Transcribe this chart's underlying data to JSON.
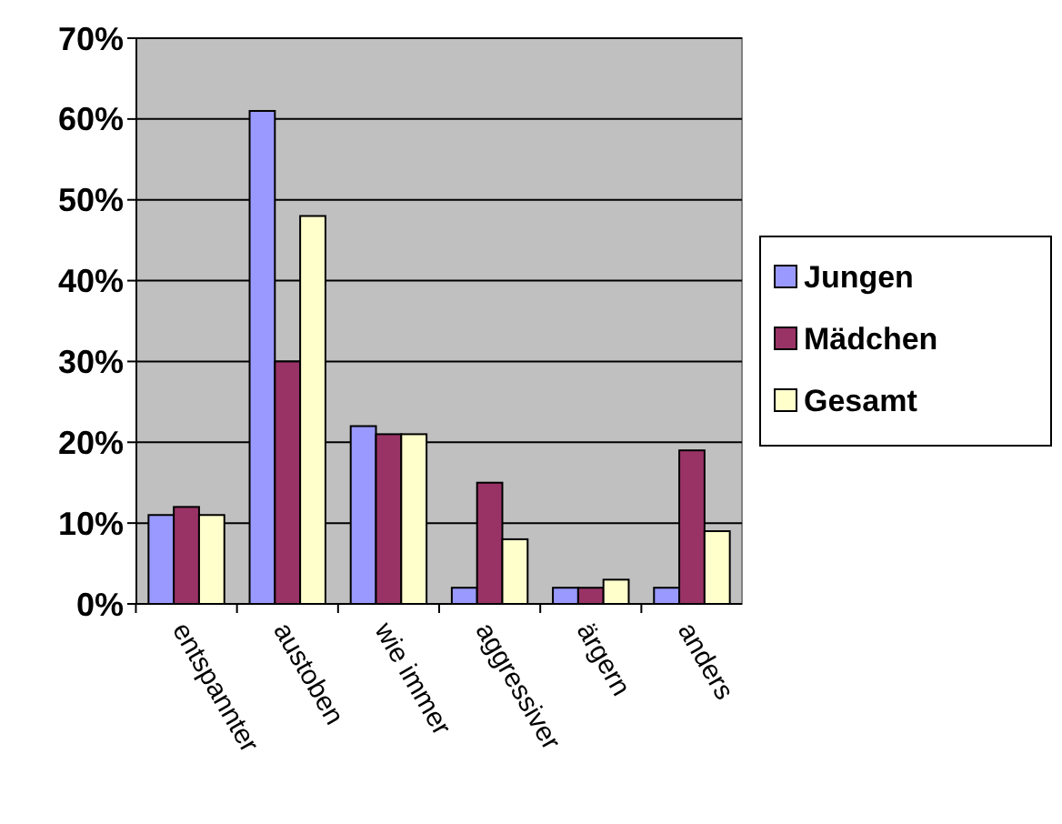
{
  "chart_data": {
    "type": "bar",
    "categories": [
      "entspannter",
      "austoben",
      "wie immer",
      "aggressiver",
      "ärgern",
      "anders"
    ],
    "series": [
      {
        "name": "Jungen",
        "color": "#9999ff",
        "values": [
          11,
          61,
          22,
          2,
          2,
          2
        ]
      },
      {
        "name": "Mädchen",
        "color": "#993366",
        "values": [
          12,
          30,
          21,
          15,
          2,
          19
        ]
      },
      {
        "name": "Gesamt",
        "color": "#ffffcc",
        "values": [
          11,
          48,
          21,
          8,
          3,
          9
        ]
      }
    ],
    "ylim": [
      0,
      70
    ],
    "yticks": [
      {
        "value": 0,
        "label": "0%"
      },
      {
        "value": 10,
        "label": "10%"
      },
      {
        "value": 20,
        "label": "20%"
      },
      {
        "value": 30,
        "label": "30%"
      },
      {
        "value": 40,
        "label": "40%"
      },
      {
        "value": 50,
        "label": "50%"
      },
      {
        "value": 60,
        "label": "60%"
      },
      {
        "value": 70,
        "label": "70%"
      }
    ],
    "grid": "y",
    "legend": "right"
  }
}
